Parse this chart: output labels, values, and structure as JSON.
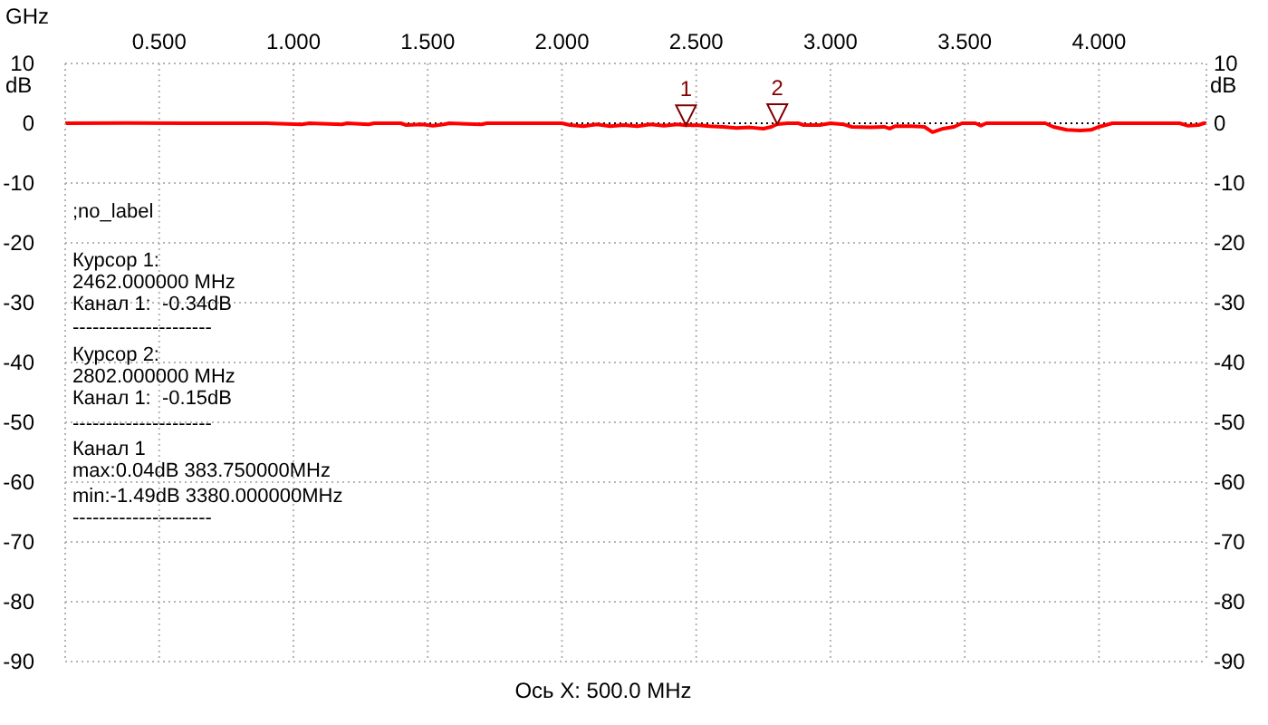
{
  "chart_data": {
    "type": "line",
    "xlabel": "GHz",
    "ylabel": "dB",
    "y2label": "dB",
    "x": [
      0.15,
      0.38375,
      0.6,
      0.9,
      1.03,
      1.06,
      1.18,
      1.2,
      1.28,
      1.3,
      1.4,
      1.42,
      1.48,
      1.52,
      1.56,
      1.58,
      1.7,
      1.72,
      2.0,
      2.03,
      2.08,
      2.13,
      2.18,
      2.23,
      2.28,
      2.33,
      2.38,
      2.43,
      2.462,
      2.5,
      2.55,
      2.6,
      2.65,
      2.7,
      2.75,
      2.78,
      2.802,
      2.84,
      2.88,
      2.9,
      2.96,
      3.0,
      3.05,
      3.08,
      3.15,
      3.2,
      3.22,
      3.24,
      3.3,
      3.35,
      3.38,
      3.42,
      3.46,
      3.49,
      3.54,
      3.56,
      3.58,
      3.8,
      3.83,
      3.88,
      3.93,
      3.97,
      4.0,
      4.05,
      4.3,
      4.33,
      4.37,
      4.39,
      4.4
    ],
    "series": [
      {
        "color": "#ff0000",
        "values": [
          0,
          0.04,
          0,
          0,
          -0.2,
          0,
          -0.2,
          0,
          -0.2,
          0,
          0,
          -0.3,
          -0.2,
          -0.4,
          -0.2,
          0,
          -0.2,
          0,
          0,
          -0.3,
          -0.5,
          -0.2,
          -0.5,
          -0.3,
          -0.5,
          -0.2,
          -0.4,
          -0.2,
          -0.34,
          -0.3,
          -0.5,
          -0.6,
          -0.8,
          -0.7,
          -0.9,
          -0.6,
          -0.15,
          0,
          0,
          -0.3,
          -0.3,
          0,
          -0.2,
          -0.6,
          -0.7,
          -0.6,
          -0.9,
          -0.5,
          -0.5,
          -0.6,
          -1.49,
          -0.9,
          -0.6,
          0,
          0,
          -0.4,
          0,
          0,
          -0.6,
          -1.1,
          -1.2,
          -1.1,
          -0.6,
          0,
          0,
          -0.4,
          -0.3,
          0,
          0
        ]
      }
    ],
    "xlim": [
      0.15,
      4.4
    ],
    "xticks": [
      {
        "value": 0.5,
        "label": "0.500"
      },
      {
        "value": 1,
        "label": "1.000"
      },
      {
        "value": 1.5,
        "label": "1.500"
      },
      {
        "value": 2,
        "label": "2.000"
      },
      {
        "value": 2.5,
        "label": "2.500"
      },
      {
        "value": 3,
        "label": "3.000"
      },
      {
        "value": 3.5,
        "label": "3.500"
      },
      {
        "value": 4,
        "label": "4.000"
      }
    ],
    "ylim": [
      -90,
      10
    ],
    "yticks": [
      10,
      0,
      -10,
      -20,
      -30,
      -40,
      -50,
      -60,
      -70,
      -80,
      -90
    ],
    "y2lim": [
      -90,
      10
    ],
    "y2ticks": [
      10,
      0,
      -10,
      -20,
      -30,
      -40,
      -50,
      -60,
      -70,
      -80,
      -90
    ],
    "grid": true,
    "marker": "none",
    "line_style": "solid",
    "ref_lines": [
      {
        "axis": "y",
        "value": 0,
        "color": "#000000",
        "line_style": "dotted"
      }
    ],
    "annotations": [
      {
        "text": "1",
        "x": 2.462,
        "y": -0.34
      },
      {
        "text": "2",
        "x": 2.802,
        "y": -0.15
      },
      ";no_label",
      "Курсор 1:",
      "2462.000000 MHz",
      "Канал 1:  -0.34dB",
      "---------------------",
      "Курсор 2:",
      "2802.000000 MHz",
      "Канал 1:  -0.15dB",
      "---------------------",
      "Канал 1",
      "max:0.04dB 383.750000MHz",
      "min:-1.49dB 3380.000000MHz",
      "---------------------",
      "Ось X: 500.0 MHz"
    ]
  }
}
